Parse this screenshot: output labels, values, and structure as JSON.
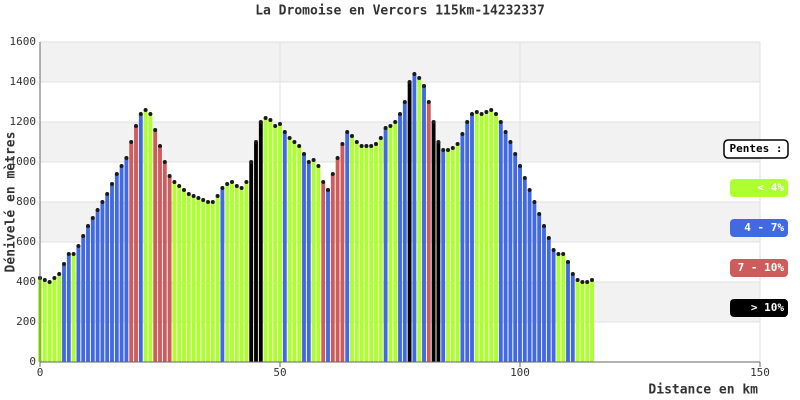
{
  "chart_data": {
    "type": "profile",
    "title": "La Dromoise en Vercors 115km-14232337",
    "x_label": "Distance en km",
    "y_label": "Dénivelé en mètres",
    "legend_title": "Pentes :",
    "xlim": [
      0,
      150
    ],
    "xticks": [
      0,
      50,
      100,
      150
    ],
    "ylim": [
      0,
      1600
    ],
    "yticks": [
      0,
      200,
      400,
      600,
      800,
      1000,
      1200,
      1400,
      1600
    ],
    "grid": true,
    "band_color": "#f2f2f2",
    "outline_color": "#1a1a1a",
    "series": [
      {
        "name": "< 4%",
        "color": "#adff2f",
        "x": [
          0,
          1,
          2,
          3,
          4,
          7,
          22,
          23,
          28,
          29,
          30,
          31,
          32,
          33,
          34,
          35,
          36,
          37,
          39,
          40,
          41,
          42,
          43,
          47,
          48,
          49,
          50,
          52,
          53,
          54,
          57,
          58,
          65,
          66,
          67,
          68,
          69,
          70,
          71,
          73,
          74,
          79,
          85,
          86,
          87,
          91,
          92,
          93,
          94,
          95,
          108,
          109,
          112,
          113,
          114,
          115
        ],
        "values": [
          420,
          410,
          400,
          420,
          440,
          540,
          1260,
          1240,
          900,
          880,
          860,
          840,
          830,
          820,
          810,
          800,
          800,
          830,
          890,
          900,
          880,
          870,
          900,
          1220,
          1210,
          1180,
          1190,
          1120,
          1100,
          1080,
          1010,
          980,
          1130,
          1100,
          1080,
          1080,
          1080,
          1090,
          1120,
          1180,
          1200,
          1420,
          1060,
          1070,
          1090,
          1250,
          1240,
          1250,
          1260,
          1240,
          540,
          540,
          410,
          400,
          400,
          410
        ]
      },
      {
        "name": "4 - 7%",
        "color": "#4169e1",
        "x": [
          5,
          6,
          8,
          9,
          10,
          11,
          12,
          13,
          14,
          15,
          16,
          17,
          18,
          21,
          38,
          51,
          55,
          56,
          60,
          64,
          72,
          75,
          76,
          78,
          80,
          84,
          88,
          89,
          90,
          96,
          97,
          98,
          99,
          100,
          101,
          102,
          103,
          104,
          105,
          106,
          107,
          110,
          111
        ],
        "values": [
          490,
          540,
          580,
          630,
          680,
          720,
          760,
          800,
          840,
          890,
          940,
          980,
          1020,
          1240,
          870,
          1150,
          1040,
          1000,
          860,
          1150,
          1170,
          1240,
          1300,
          1440,
          1380,
          1060,
          1140,
          1200,
          1240,
          1200,
          1150,
          1100,
          1040,
          980,
          920,
          860,
          800,
          740,
          680,
          620,
          560,
          500,
          440
        ]
      },
      {
        "name": "7 - 10%",
        "color": "#cd5c5c",
        "x": [
          19,
          20,
          24,
          25,
          26,
          27,
          59,
          61,
          62,
          63,
          81
        ],
        "values": [
          1100,
          1180,
          1160,
          1080,
          1000,
          930,
          900,
          940,
          1020,
          1090,
          1300
        ]
      },
      {
        "name": "> 10%",
        "color": "#000000",
        "x": [
          44,
          45,
          46,
          77,
          82,
          83
        ],
        "values": [
          1000,
          1100,
          1200,
          1400,
          1200,
          1100
        ]
      }
    ]
  }
}
